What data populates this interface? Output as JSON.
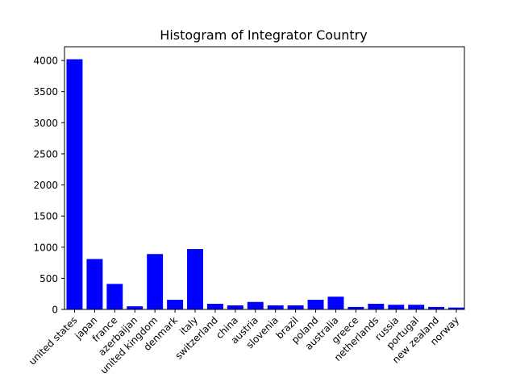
{
  "chart_data": {
    "type": "bar",
    "title": "Histogram of Integrator Country",
    "xlabel": "",
    "ylabel": "",
    "ylim": [
      0,
      4221
    ],
    "yticks": [
      0,
      500,
      1000,
      1500,
      2000,
      2500,
      3000,
      3500,
      4000
    ],
    "grid": false,
    "categories": [
      "united states",
      "japan",
      "france",
      "azerbaijan",
      "united kingdom",
      "denmark",
      "italy",
      "switzerland",
      "china",
      "austria",
      "slovenia",
      "brazil",
      "poland",
      "australia",
      "greece",
      "netherlands",
      "russia",
      "portugal",
      "new zealand",
      "norway"
    ],
    "values": [
      4020,
      810,
      410,
      50,
      890,
      155,
      970,
      90,
      65,
      120,
      65,
      65,
      155,
      205,
      40,
      90,
      75,
      75,
      40,
      30
    ],
    "bar_color": "#0000ff"
  }
}
